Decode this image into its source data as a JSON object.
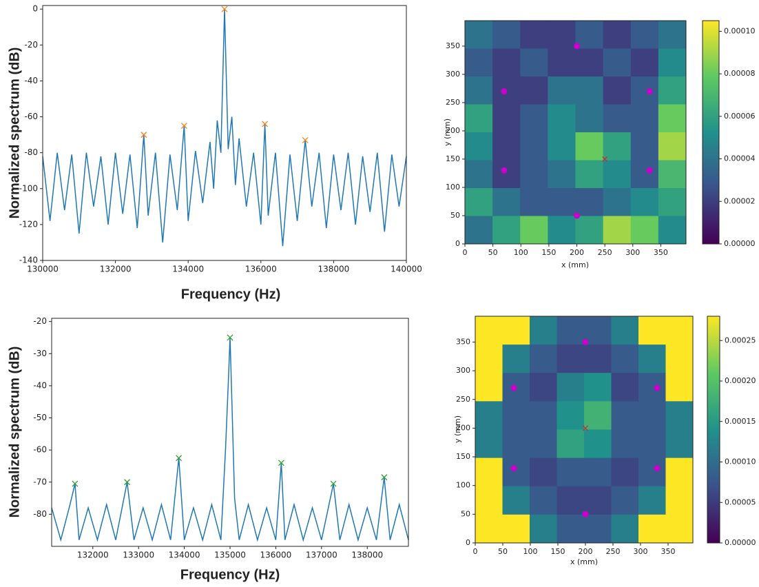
{
  "chart_data": [
    {
      "type": "line",
      "x_label": "Frequency (Hz)",
      "y_label": "Normalized spectrum (dB)",
      "xlim": [
        130000,
        140000
      ],
      "ylim": [
        -140,
        2
      ],
      "xticks": [
        130000,
        132000,
        134000,
        136000,
        138000,
        140000
      ],
      "yticks": [
        0,
        -20,
        -40,
        -60,
        -80,
        -100,
        -120,
        -140
      ],
      "series": [
        {
          "color": "#1f77b4",
          "marker": "line",
          "x": [
            130000,
            130200,
            130400,
            130600,
            130800,
            131000,
            131200,
            131400,
            131600,
            131800,
            132000,
            132200,
            132400,
            132600,
            132780,
            132900,
            133100,
            133300,
            133500,
            133700,
            133890,
            134000,
            134200,
            134400,
            134600,
            134700,
            134800,
            134900,
            135000,
            135100,
            135200,
            135300,
            135400,
            135600,
            135800,
            136000,
            136110,
            136200,
            136400,
            136600,
            136800,
            137000,
            137220,
            137400,
            137600,
            137800,
            138000,
            138200,
            138400,
            138600,
            138800,
            139000,
            139200,
            139400,
            139600,
            139800,
            140000
          ],
          "values": [
            -82,
            -118,
            -80,
            -112,
            -81,
            -125,
            -80,
            -110,
            -82,
            -120,
            -80,
            -114,
            -81,
            -122,
            -70,
            -115,
            -80,
            -130,
            -81,
            -112,
            -65,
            -118,
            -79,
            -108,
            -74,
            -100,
            -62,
            -80,
            0,
            -78,
            -60,
            -98,
            -72,
            -110,
            -80,
            -120,
            -64,
            -115,
            -80,
            -132,
            -81,
            -118,
            -73,
            -110,
            -80,
            -122,
            -81,
            -112,
            -80,
            -120,
            -82,
            -113,
            -80,
            -124,
            -81,
            -110,
            -82
          ]
        },
        {
          "color": "#ff7f0e",
          "marker": "x",
          "x": [
            132780,
            133890,
            135000,
            136110,
            137220
          ],
          "values": [
            -70,
            -65,
            0,
            -64,
            -73
          ]
        }
      ]
    },
    {
      "type": "heatmap",
      "x_label": "x (mm)",
      "y_label": "y (mm)",
      "colormap": "viridis",
      "xlim": [
        0,
        395
      ],
      "ylim": [
        0,
        395
      ],
      "xticks": [
        0,
        50,
        100,
        150,
        200,
        250,
        300,
        350
      ],
      "yticks": [
        0,
        50,
        100,
        150,
        200,
        250,
        300,
        350
      ],
      "clim": [
        0,
        0.000105
      ],
      "cticks": [
        {
          "value": 0,
          "label": "0.00000"
        },
        2e-05,
        4e-05,
        6e-05,
        8e-05,
        {
          "value": 0.0001,
          "label": "0.00010"
        }
      ],
      "z": [
        [
          4e-05,
          3e-05,
          2e-05,
          2e-05,
          3e-05,
          2e-05,
          3e-05,
          4e-05
        ],
        [
          3e-05,
          2e-05,
          3e-05,
          2e-05,
          2e-05,
          3e-05,
          2e-05,
          5e-05
        ],
        [
          4e-05,
          2e-05,
          2e-05,
          4e-05,
          4e-05,
          2e-05,
          3e-05,
          6e-05
        ],
        [
          6e-05,
          2e-05,
          3e-05,
          5e-05,
          4e-05,
          3e-05,
          3e-05,
          8e-05
        ],
        [
          5e-05,
          2e-05,
          3e-05,
          5e-05,
          8e-05,
          6e-05,
          3e-05,
          9e-05
        ],
        [
          4e-05,
          2e-05,
          3e-05,
          4e-05,
          6e-05,
          5e-05,
          3e-05,
          7e-05
        ],
        [
          6e-05,
          4e-05,
          3e-05,
          3e-05,
          3e-05,
          4e-05,
          5e-05,
          6e-05
        ],
        [
          4e-05,
          6e-05,
          8e-05,
          5e-05,
          6e-05,
          9e-05,
          8e-05,
          5e-05
        ]
      ],
      "points": [
        {
          "color": "#cc00cc",
          "marker": "o",
          "x": [
            200,
            70,
            330,
            70,
            330,
            200
          ],
          "values": [
            350,
            270,
            270,
            130,
            130,
            50
          ]
        },
        {
          "color": "#d62728",
          "marker": "x",
          "x": [
            250
          ],
          "values": [
            150
          ]
        }
      ]
    },
    {
      "type": "line",
      "x_label": "Frequency (Hz)",
      "y_label": "Normalized spectrum (dB)",
      "xlim": [
        131100,
        138900
      ],
      "ylim": [
        -90,
        -19
      ],
      "xticks": [
        132000,
        133000,
        134000,
        135000,
        136000,
        137000,
        138000
      ],
      "yticks": [
        -80,
        -70,
        -60,
        -50,
        -40,
        -30,
        -20
      ],
      "series": [
        {
          "color": "#1f77b4",
          "marker": "line",
          "x": [
            131100,
            131300,
            131500,
            131610,
            131700,
            131900,
            132100,
            132300,
            132500,
            132750,
            132900,
            133100,
            133300,
            133500,
            133700,
            133880,
            134000,
            134200,
            134400,
            134600,
            134800,
            134900,
            134960,
            135000,
            135040,
            135100,
            135200,
            135400,
            135600,
            135800,
            136000,
            136120,
            136200,
            136400,
            136600,
            136800,
            137000,
            137260,
            137400,
            137600,
            137800,
            138000,
            138200,
            138370,
            138500,
            138700,
            138900
          ],
          "values": [
            -78,
            -88,
            -77,
            -70.5,
            -88,
            -78,
            -88,
            -77,
            -88,
            -70,
            -88,
            -78,
            -88,
            -77,
            -88,
            -62.5,
            -88,
            -78,
            -88,
            -77,
            -88,
            -60,
            -40,
            -25,
            -45,
            -75,
            -88,
            -77,
            -88,
            -78,
            -88,
            -64,
            -88,
            -77,
            -88,
            -78,
            -88,
            -70.5,
            -88,
            -77,
            -88,
            -78,
            -88,
            -68.5,
            -88,
            -77,
            -88
          ]
        },
        {
          "color": "#2ca02c",
          "marker": "x",
          "x": [
            131610,
            132750,
            133880,
            135000,
            136120,
            137260,
            138370
          ],
          "values": [
            -70.5,
            -70,
            -62.5,
            -25,
            -64,
            -70.5,
            -68.5
          ]
        }
      ]
    },
    {
      "type": "heatmap",
      "x_label": "x (mm)",
      "y_label": "y (mm)",
      "colormap": "viridis",
      "xlim": [
        0,
        395
      ],
      "ylim": [
        0,
        395
      ],
      "xticks": [
        0,
        50,
        100,
        150,
        200,
        250,
        300,
        350
      ],
      "yticks": [
        0,
        50,
        100,
        150,
        200,
        250,
        300,
        350
      ],
      "clim": [
        0,
        0.00028
      ],
      "cticks": [
        {
          "value": 0,
          "label": "0.00000"
        },
        5e-05,
        {
          "value": 0.0001,
          "label": "0.00010"
        },
        0.00015,
        {
          "value": 0.0002,
          "label": "0.00020"
        },
        0.00025
      ],
      "z": [
        [
          0.00028,
          0.00028,
          0.00012,
          8e-05,
          8e-05,
          0.00012,
          0.00028,
          0.00028
        ],
        [
          0.00028,
          0.00012,
          8e-05,
          6e-05,
          6e-05,
          8e-05,
          0.00012,
          0.00028
        ],
        [
          0.00028,
          8e-05,
          6e-05,
          0.00012,
          0.00014,
          6e-05,
          8e-05,
          0.00028
        ],
        [
          0.00012,
          8e-05,
          8e-05,
          0.00014,
          0.00018,
          8e-05,
          8e-05,
          0.00012
        ],
        [
          0.00012,
          8e-05,
          8e-05,
          0.00016,
          0.00014,
          8e-05,
          8e-05,
          0.00012
        ],
        [
          0.00028,
          8e-05,
          6e-05,
          8e-05,
          8e-05,
          6e-05,
          8e-05,
          0.00028
        ],
        [
          0.00028,
          0.00012,
          8e-05,
          6e-05,
          6e-05,
          8e-05,
          0.00012,
          0.00028
        ],
        [
          0.00028,
          0.00028,
          0.00012,
          8e-05,
          8e-05,
          0.00012,
          0.00028,
          0.00028
        ]
      ],
      "points": [
        {
          "color": "#cc00cc",
          "marker": "o",
          "x": [
            200,
            70,
            330,
            70,
            330,
            200
          ],
          "values": [
            350,
            270,
            270,
            130,
            130,
            50
          ]
        },
        {
          "color": "#d62728",
          "marker": "x",
          "x": [
            200
          ],
          "values": [
            200
          ]
        }
      ]
    }
  ]
}
